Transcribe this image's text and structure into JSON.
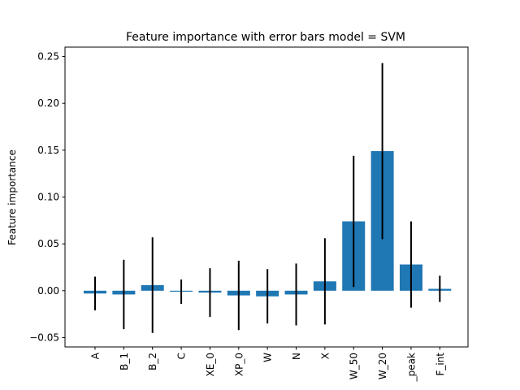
{
  "chart_data": {
    "type": "bar",
    "title": "Feature importance with error bars model = SVM",
    "xlabel": "",
    "ylabel": "Feature importance",
    "ylim": [
      -0.06,
      0.26
    ],
    "yticks": [
      -0.05,
      0.0,
      0.05,
      0.1,
      0.15,
      0.2,
      0.25
    ],
    "ytick_labels": [
      "−0.05",
      "0.00",
      "0.05",
      "0.10",
      "0.15",
      "0.20",
      "0.25"
    ],
    "categories": [
      "A",
      "B_1",
      "B_2",
      "C",
      "XE_0",
      "XP_0",
      "W",
      "N",
      "X",
      "W_50",
      "W_20",
      "_peak",
      "F_int"
    ],
    "values": [
      -0.003,
      -0.004,
      0.006,
      -0.001,
      -0.002,
      -0.005,
      -0.006,
      -0.004,
      0.01,
      0.074,
      0.149,
      0.028,
      0.002
    ],
    "errors": [
      0.018,
      0.037,
      0.051,
      0.013,
      0.026,
      0.037,
      0.029,
      0.033,
      0.046,
      0.07,
      0.094,
      0.046,
      0.014
    ],
    "bar_color": "#1f77b4",
    "error_color": "#000000",
    "grid": false,
    "legend": "none"
  }
}
